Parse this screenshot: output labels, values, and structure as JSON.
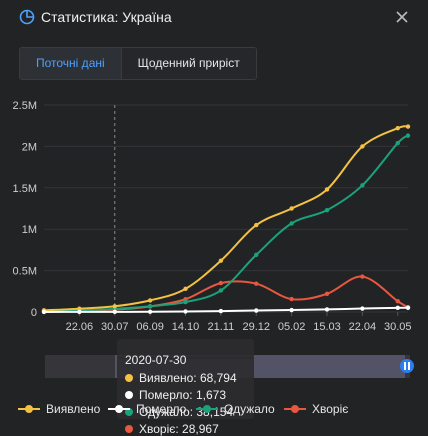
{
  "header": {
    "title": "Статистика: Україна"
  },
  "tabs": [
    {
      "label": "Поточні дані",
      "active": true
    },
    {
      "label": "Щоденний приріст",
      "active": false
    }
  ],
  "colors": {
    "confirmed": "#f4c242",
    "deaths": "#ffffff",
    "recovered": "#1aa37a",
    "active": "#e8573f",
    "accent": "#4ea1ff"
  },
  "legend": [
    {
      "key": "confirmed",
      "label": "Виявлено"
    },
    {
      "key": "deaths",
      "label": "Померло"
    },
    {
      "key": "recovered",
      "label": "Одужало"
    },
    {
      "key": "active",
      "label": "Хворіє"
    }
  ],
  "tooltip": {
    "date": "2020-07-30",
    "rows": [
      {
        "key": "confirmed",
        "text": "Виявлено: 68,794"
      },
      {
        "key": "deaths",
        "text": "Померло: 1,673"
      },
      {
        "key": "recovered",
        "text": "Одужало: 38,154"
      },
      {
        "key": "active",
        "text": "Хворіє: 28,967"
      }
    ]
  },
  "chart_data": {
    "type": "line",
    "title": "",
    "xlabel": "",
    "ylabel": "",
    "x_tick_labels": [
      "22.06",
      "30.07",
      "06.09",
      "14.10",
      "21.11",
      "29.12",
      "05.02",
      "15.03",
      "22.04",
      "30.05"
    ],
    "y_tick_labels": [
      "0",
      "0.5M",
      "1M",
      "1.5M",
      "2M",
      "2.5M"
    ],
    "ylim": [
      0,
      2500000
    ],
    "x": [
      "2020-05-15",
      "2020-06-22",
      "2020-07-30",
      "2020-09-06",
      "2020-10-14",
      "2020-11-21",
      "2020-12-29",
      "2021-02-05",
      "2021-03-15",
      "2021-04-22",
      "2021-05-30",
      "2021-06-10"
    ],
    "series": [
      {
        "name": "Виявлено",
        "key": "confirmed",
        "values": [
          20000,
          40000,
          69000,
          140000,
          280000,
          620000,
          1050000,
          1250000,
          1480000,
          2000000,
          2220000,
          2240000
        ]
      },
      {
        "name": "Померло",
        "key": "deaths",
        "values": [
          500,
          1100,
          1700,
          3000,
          6000,
          11000,
          18000,
          24000,
          31000,
          42000,
          50000,
          51000
        ]
      },
      {
        "name": "Одужало",
        "key": "recovered",
        "values": [
          8000,
          20000,
          38000,
          70000,
          120000,
          260000,
          690000,
          1070000,
          1230000,
          1530000,
          2040000,
          2130000
        ]
      },
      {
        "name": "Хворіє",
        "key": "active",
        "values": [
          11000,
          19000,
          29000,
          67000,
          154000,
          349000,
          342000,
          156000,
          219000,
          428000,
          130000,
          59000
        ]
      }
    ],
    "cursor_x": "2020-07-30",
    "grid": true
  }
}
